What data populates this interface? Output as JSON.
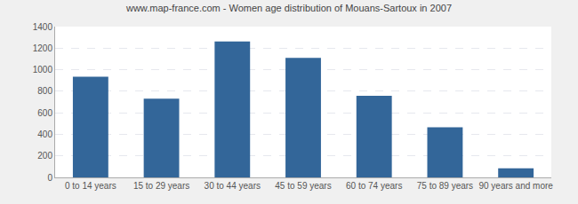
{
  "chart_data": {
    "type": "bar",
    "title": "www.map-france.com - Women age distribution of Mouans-Sartoux in 2007",
    "categories": [
      "0 to 14 years",
      "15 to 29 years",
      "30 to 44 years",
      "45 to 59 years",
      "60 to 74 years",
      "75 to 89 years",
      "90 years and more"
    ],
    "values": [
      935,
      730,
      1262,
      1110,
      757,
      465,
      85
    ],
    "color": "#336699",
    "ylim": [
      0,
      1400
    ],
    "yticks": [
      0,
      200,
      400,
      600,
      800,
      1000,
      1200,
      1400
    ],
    "grid": true
  }
}
